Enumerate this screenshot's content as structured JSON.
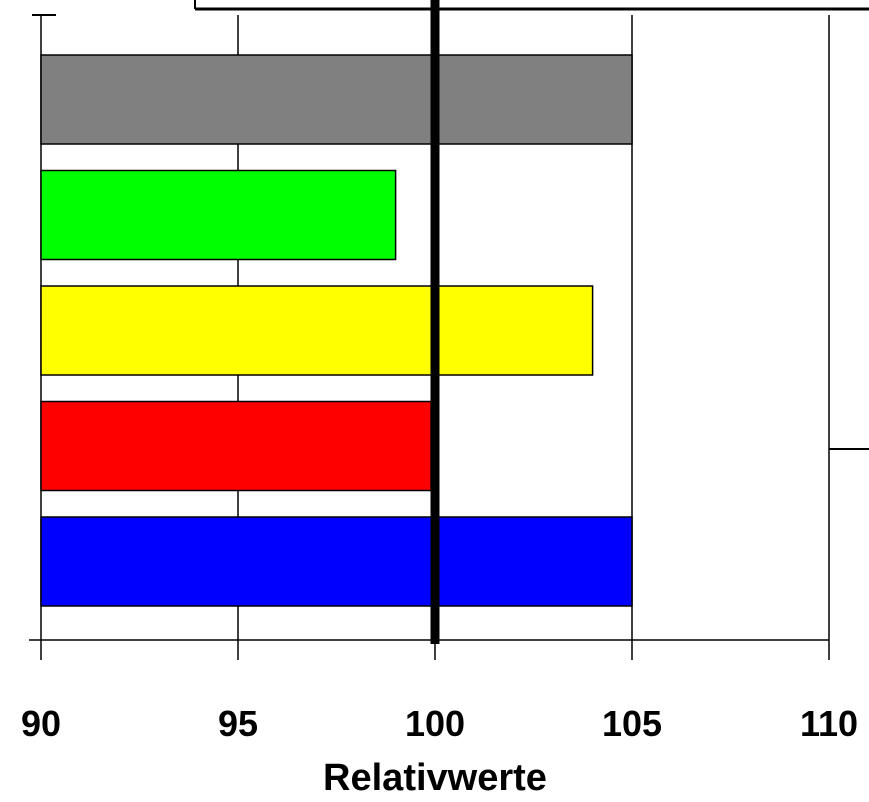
{
  "chart_data": {
    "type": "bar",
    "orientation": "horizontal",
    "title": "",
    "xlabel": "Relativwerte",
    "ylabel": "",
    "xlim": [
      90,
      110
    ],
    "xticks": [
      90,
      95,
      100,
      105,
      110
    ],
    "xtick_labels": [
      "90",
      "95",
      "100",
      "105",
      "110"
    ],
    "grid": true,
    "reference_line": 100,
    "bars": [
      {
        "value": 105,
        "color": "#808080"
      },
      {
        "value": 99,
        "color": "#00ff00"
      },
      {
        "value": 104,
        "color": "#ffff00"
      },
      {
        "value": 99.9,
        "color": "#ff0000"
      },
      {
        "value": 105,
        "color": "#0000ff"
      }
    ]
  }
}
